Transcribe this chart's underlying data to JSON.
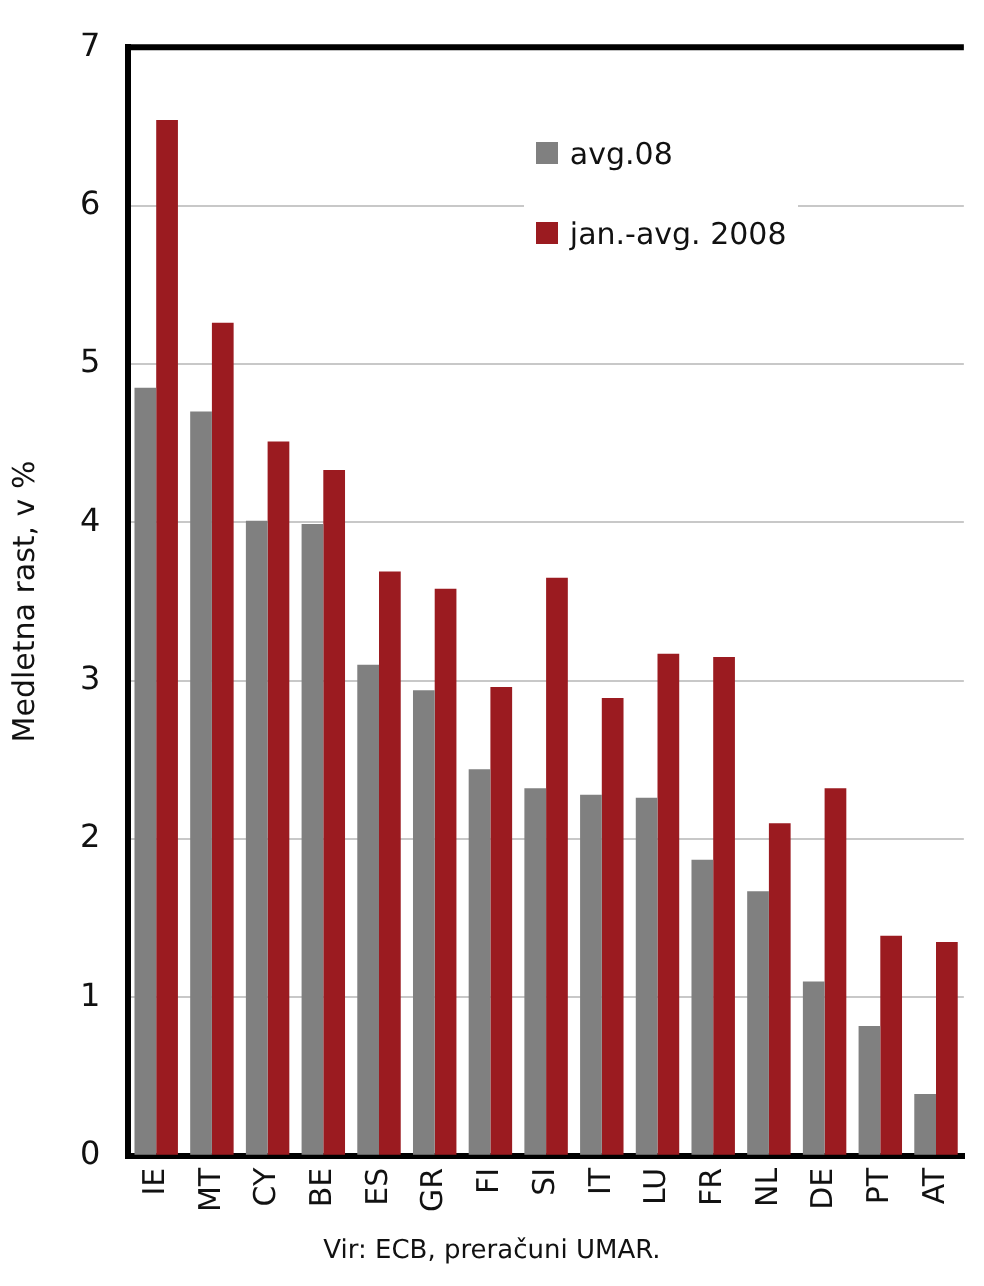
{
  "chart_data": {
    "type": "bar",
    "ylabel": "Medletna rast, v %",
    "annotations": [
      "Vir: ECB, preračuni UMAR."
    ],
    "categories": [
      "IE",
      "MT",
      "CY",
      "BE",
      "ES",
      "GR",
      "FI",
      "SI",
      "IT",
      "LU",
      "FR",
      "NL",
      "DE",
      "PT",
      "AT"
    ],
    "series": [
      {
        "name": "avg.08",
        "color": "#808080",
        "values": [
          4.85,
          4.7,
          4.01,
          3.99,
          3.1,
          2.94,
          2.44,
          2.32,
          2.28,
          2.26,
          1.87,
          1.67,
          1.1,
          0.82,
          0.39
        ]
      },
      {
        "name": "jan.-avg. 2008",
        "color": "#9b1b20",
        "values": [
          6.54,
          5.26,
          4.51,
          4.33,
          3.69,
          3.58,
          2.96,
          3.65,
          2.89,
          3.17,
          3.15,
          2.1,
          2.32,
          1.39,
          1.35
        ]
      }
    ],
    "ylim": [
      0,
      7
    ],
    "yticks": [
      0,
      1,
      2,
      3,
      4,
      5,
      6,
      7
    ],
    "grid": "y",
    "legend": "top right"
  }
}
